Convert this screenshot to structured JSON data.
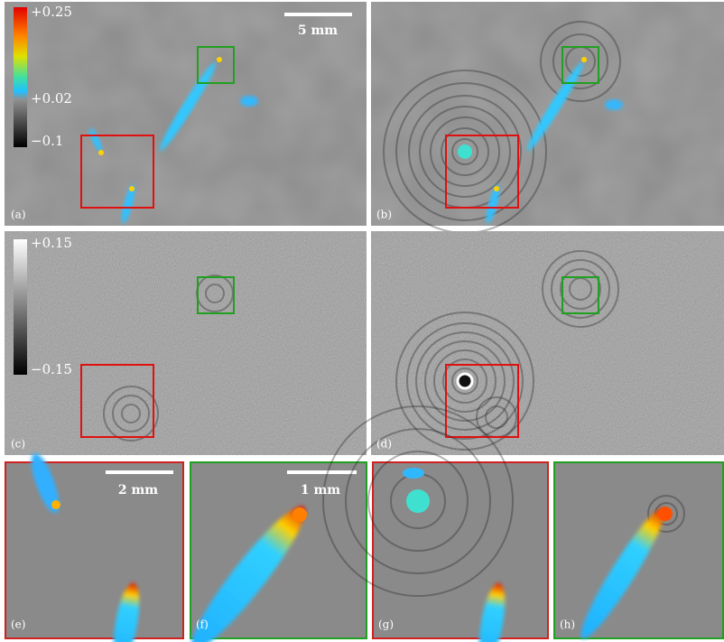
{
  "panels": [
    {
      "label": "(a)"
    },
    {
      "label": "(b)"
    },
    {
      "label": "(c)"
    },
    {
      "label": "(d)"
    },
    {
      "label": "(e)"
    },
    {
      "label": "(f)"
    },
    {
      "label": "(g)"
    },
    {
      "label": "(h)"
    }
  ],
  "colorbar_phase": {
    "ticks": [
      "+0.25",
      "+0.02",
      "−0.1"
    ]
  },
  "colorbar_diff": {
    "ticks": [
      "+0.15",
      "−0.15"
    ]
  },
  "scale_bars": [
    "5 mm",
    "2 mm",
    "1 mm"
  ]
}
